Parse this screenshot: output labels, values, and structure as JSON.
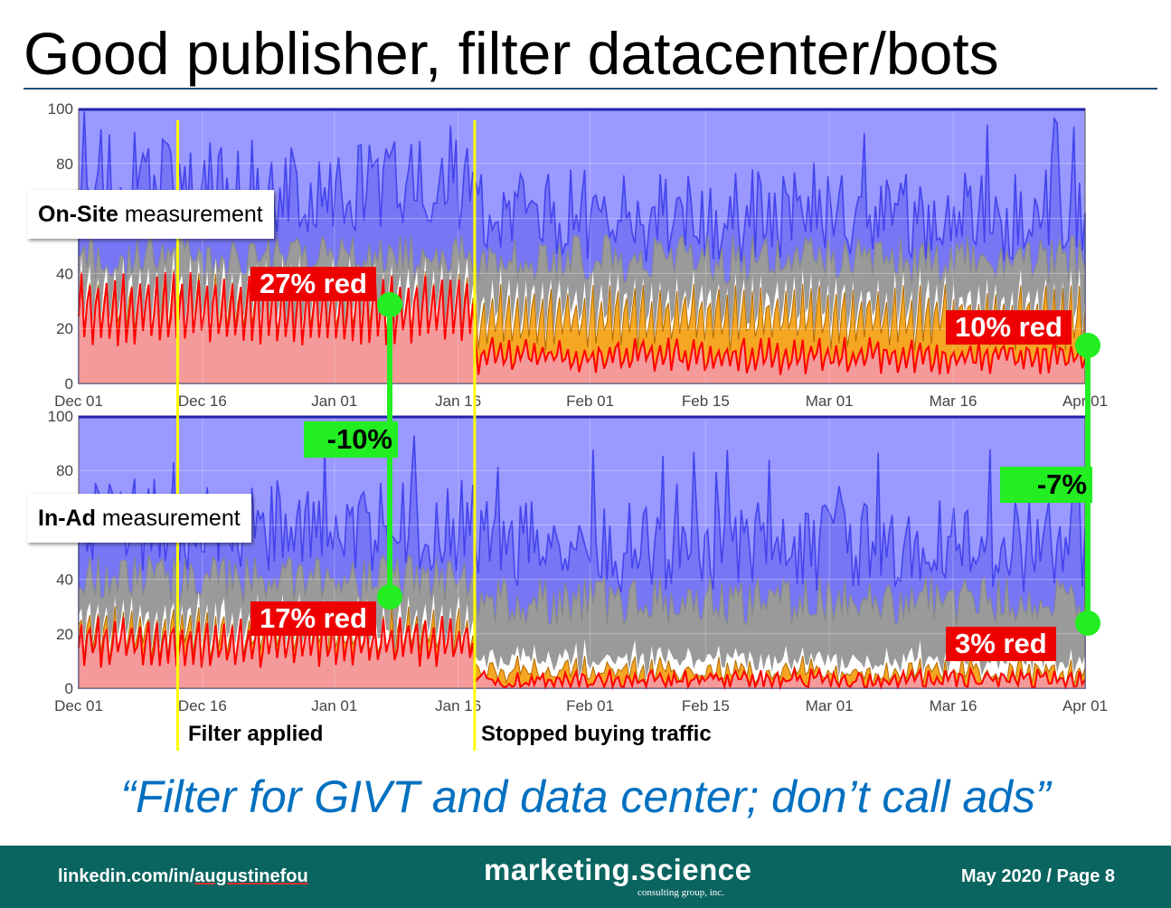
{
  "title": "Good publisher, filter datacenter/bots",
  "quote": "“Filter for GIVT and data center; don’t call ads”",
  "footer": {
    "linkedin_prefix": "linkedin.com/in/",
    "linkedin_user": "augustinefou",
    "brand": "marketing.science",
    "brand_sub": "consulting group, inc.",
    "page": "May 2020 / Page 8"
  },
  "colors": {
    "bot_red": "#ff0000",
    "red_fill": "#f49a9a",
    "orange": "#f5a623",
    "white": "#ffffff",
    "gray": "#9a9a9a",
    "blue_line": "#4444ee",
    "blue_fill": "#9999ff",
    "marker_yellow": "#ffff00",
    "callout_green": "#22ee22",
    "callout_red": "#ee0000",
    "quote_blue": "#0070c0",
    "footer_teal": "#0a6560"
  },
  "panels": {
    "onsite": {
      "label_bold": "On-Site",
      "label_rest": " measurement"
    },
    "inad": {
      "label_bold": "In-Ad",
      "label_rest": " measurement"
    }
  },
  "callouts": {
    "onsite_before": "27% red",
    "onsite_after": "10% red",
    "inad_before": "17% red",
    "inad_after": "3% red",
    "diff_before": "-10%",
    "diff_after": "-7%"
  },
  "markers": {
    "filter": "Filter applied",
    "stop": "Stopped buying traffic"
  },
  "chart_data": [
    {
      "type": "area",
      "panel": "On-Site measurement",
      "x_ticks": [
        "Dec 01",
        "Dec 16",
        "Jan 01",
        "Jan 16",
        "Feb 01",
        "Feb 15",
        "Mar 01",
        "Mar 16",
        "Apr 01"
      ],
      "x_range": [
        "2019-12-01",
        "2020-04-01"
      ],
      "ylim": [
        0,
        100
      ],
      "y_ticks": [
        0,
        20,
        40,
        60,
        80,
        100
      ],
      "grid": true,
      "series_colors": [
        "#ff0000",
        "#f5a623",
        "#ffffff",
        "#9a9a9a",
        "#4444ee"
      ],
      "events": [
        {
          "date": "2019-12-13",
          "label": "Filter applied"
        },
        {
          "date": "2020-01-18",
          "label": "Stopped buying traffic"
        }
      ],
      "annotations": [
        {
          "text": "27% red",
          "period": "before"
        },
        {
          "text": "10% red",
          "period": "after"
        }
      ],
      "red_level": {
        "before": 27,
        "after": 10
      },
      "orange_top": {
        "before": 28,
        "after": 24
      },
      "gray_top": {
        "before": 45,
        "after": 45
      },
      "blue_top": {
        "before": 72,
        "after": 60
      }
    },
    {
      "type": "area",
      "panel": "In-Ad measurement",
      "x_ticks": [
        "Dec 01",
        "Dec 16",
        "Jan 01",
        "Jan 16",
        "Feb 01",
        "Feb 15",
        "Mar 01",
        "Mar 16",
        "Apr 01"
      ],
      "x_range": [
        "2019-12-01",
        "2020-04-01"
      ],
      "ylim": [
        0,
        100
      ],
      "y_ticks": [
        0,
        20,
        40,
        60,
        80,
        100
      ],
      "grid": true,
      "series_colors": [
        "#ff0000",
        "#f5a623",
        "#ffffff",
        "#9a9a9a",
        "#4444ee"
      ],
      "events": [
        {
          "date": "2019-12-13",
          "label": "Filter applied"
        },
        {
          "date": "2020-01-18",
          "label": "Stopped buying traffic"
        }
      ],
      "annotations": [
        {
          "text": "17% red",
          "period": "before"
        },
        {
          "text": "3% red",
          "period": "after"
        }
      ],
      "red_level": {
        "before": 17,
        "after": 3
      },
      "orange_top": {
        "before": 20,
        "after": 6
      },
      "gray_top": {
        "before": 40,
        "after": 32
      },
      "blue_top": {
        "before": 60,
        "after": 52
      }
    }
  ]
}
